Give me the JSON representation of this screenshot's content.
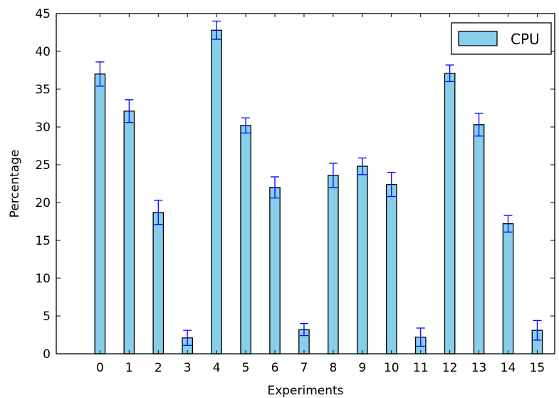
{
  "chart_data": {
    "type": "bar",
    "xlabel": "Experiments",
    "ylabel": "Percentage",
    "categories": [
      "0",
      "1",
      "2",
      "3",
      "4",
      "5",
      "6",
      "7",
      "8",
      "9",
      "10",
      "11",
      "12",
      "13",
      "14",
      "15"
    ],
    "series": [
      {
        "name": "CPU",
        "color": "#87ceeb",
        "values": [
          37.0,
          32.1,
          18.7,
          2.1,
          42.8,
          30.2,
          22.0,
          3.2,
          23.6,
          24.8,
          22.4,
          2.2,
          37.1,
          30.3,
          17.2,
          3.1
        ],
        "errors": [
          1.6,
          1.5,
          1.6,
          1.0,
          1.2,
          1.0,
          1.4,
          0.8,
          1.6,
          1.1,
          1.6,
          1.2,
          1.1,
          1.5,
          1.1,
          1.3
        ]
      }
    ],
    "ylim": [
      0,
      45
    ],
    "yticks": [
      "0",
      "5",
      "10",
      "15",
      "20",
      "25",
      "30",
      "35",
      "40",
      "45"
    ],
    "xlim": [
      -1.5,
      15.6
    ],
    "error_color": "#0000ff",
    "grid": false,
    "legend_position": "top-right"
  }
}
